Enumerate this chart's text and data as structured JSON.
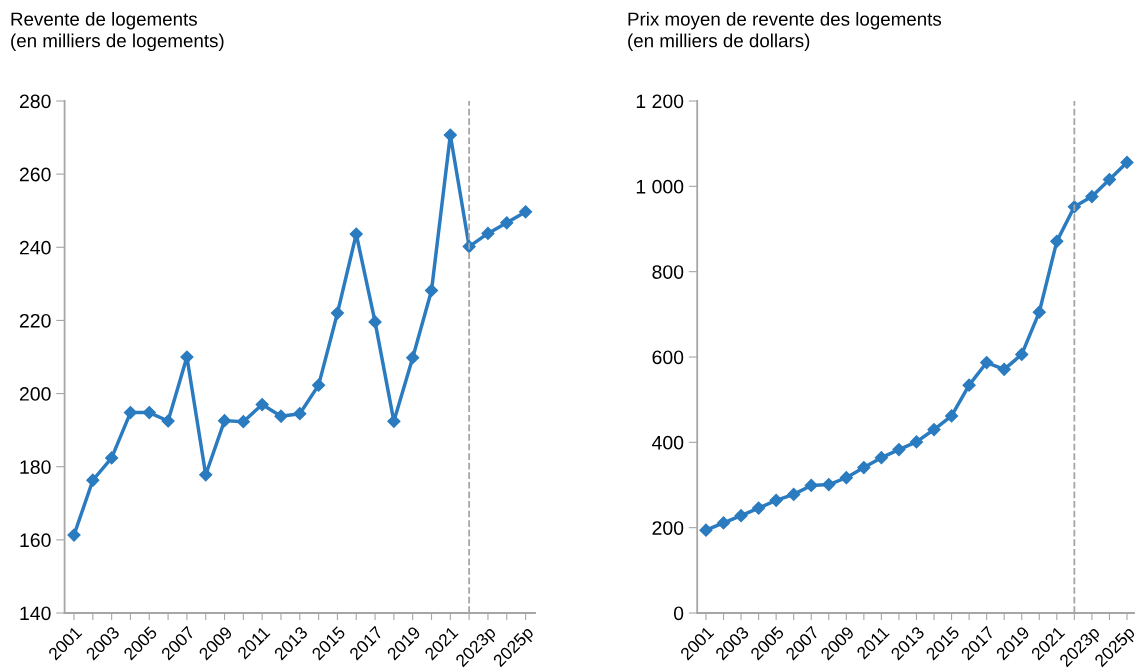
{
  "chart_data": [
    {
      "type": "line",
      "title": "Revente de logements\n(en milliers de logements)",
      "categories": [
        "2001",
        null,
        "2003",
        null,
        "2005",
        null,
        "2007",
        null,
        "2009",
        null,
        "2011",
        null,
        "2013",
        null,
        "2015",
        null,
        "2017",
        null,
        "2019",
        null,
        "2021",
        null,
        "2023p",
        null,
        "2025p"
      ],
      "series": [
        {
          "color": "#2a7bbf",
          "values": [
            161.3,
            176.3,
            182.4,
            194.8,
            194.8,
            192.5,
            210.0,
            177.8,
            192.6,
            192.3,
            197.0,
            193.8,
            194.5,
            202.3,
            222.0,
            243.6,
            219.6,
            192.4,
            209.8,
            228.2,
            270.7,
            240.2,
            243.8,
            246.7,
            249.7
          ]
        }
      ],
      "ylim": [
        140,
        280
      ],
      "yticks": [
        140,
        160,
        180,
        200,
        220,
        240,
        260,
        280
      ],
      "marker": "diamond",
      "line_style": "solid"
    },
    {
      "type": "line",
      "title": "Prix moyen de revente des logements\n(en milliers de dollars)",
      "categories": [
        "2001",
        null,
        "2003",
        null,
        "2005",
        null,
        "2007",
        null,
        "2009",
        null,
        "2011",
        null,
        "2013",
        null,
        "2015",
        null,
        "2017",
        null,
        "2019",
        null,
        "2021",
        null,
        "2023p",
        null,
        "2025p"
      ],
      "series": [
        {
          "color": "#2a7bbf",
          "values": [
            194,
            211,
            228,
            246,
            264,
            278,
            299,
            301,
            317,
            341,
            364,
            383,
            401,
            430,
            462,
            534,
            587,
            571,
            606,
            705,
            871,
            952,
            976,
            1016,
            1056
          ]
        }
      ],
      "ylim": [
        0,
        1200
      ],
      "yticks": [
        0,
        200,
        400,
        600,
        800,
        {
          "value": 1000,
          "label": "1 000"
        },
        {
          "value": 1200,
          "label": "1 200"
        }
      ],
      "marker": "diamond",
      "line_style": "solid"
    }
  ]
}
